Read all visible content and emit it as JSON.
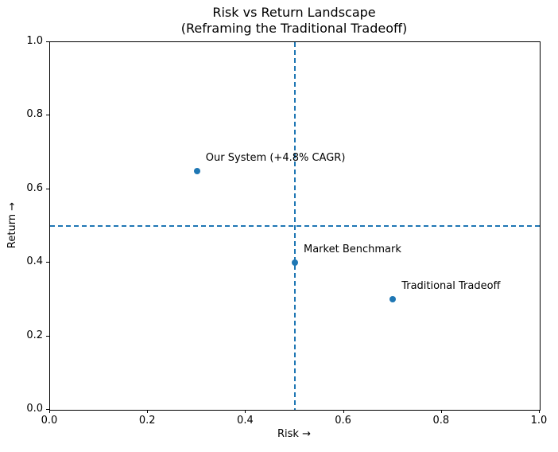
{
  "figure": {
    "background": "#ffffff",
    "spine_color": "#000000",
    "accent": "#1f77b4"
  },
  "chart_data": {
    "type": "scatter",
    "title": "Risk vs Return Landscape",
    "subtitle": "(Reframing the Traditional Tradeoff)",
    "xlabel": "Risk →",
    "ylabel": "Return →",
    "xlim": [
      0.0,
      1.0
    ],
    "ylim": [
      0.0,
      1.0
    ],
    "xticks": [
      0.0,
      0.2,
      0.4,
      0.6,
      0.8,
      1.0
    ],
    "yticks": [
      0.0,
      0.2,
      0.4,
      0.6,
      0.8,
      1.0
    ],
    "grid": false,
    "legend": "none",
    "marker_color": "#1f77b4",
    "points": [
      {
        "label": "Our System (+4.8% CAGR)",
        "x": 0.3,
        "y": 0.65
      },
      {
        "label": "Market Benchmark",
        "x": 0.5,
        "y": 0.4
      },
      {
        "label": "Traditional Tradeoff",
        "x": 0.7,
        "y": 0.3
      }
    ],
    "reference_lines": [
      {
        "orientation": "horizontal",
        "value": 0.5,
        "style": "dashed",
        "color": "#1f77b4"
      },
      {
        "orientation": "vertical",
        "value": 0.5,
        "style": "dashed",
        "color": "#1f77b4"
      }
    ]
  }
}
